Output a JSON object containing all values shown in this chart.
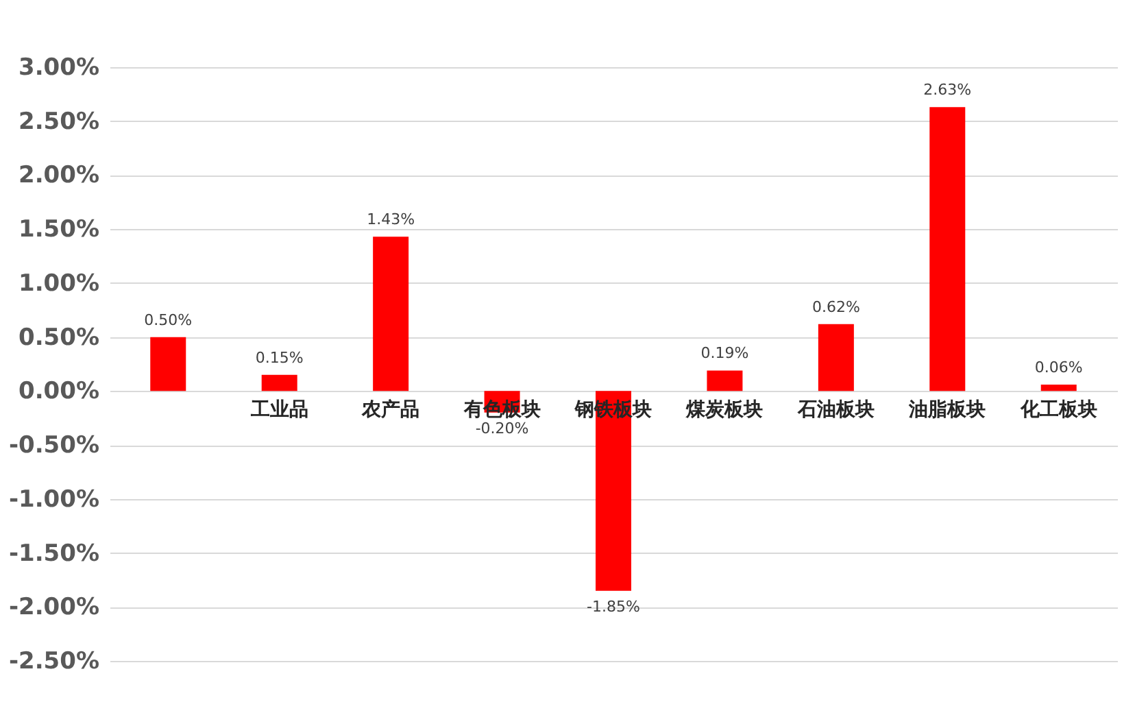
{
  "chart_data": {
    "type": "bar",
    "categories": [
      null,
      "工业品",
      "农产品",
      "有色板块",
      "钢铁板块",
      "煤炭板块",
      "石油板块",
      "油脂板块",
      "化工板块"
    ],
    "series": [
      {
        "color": "#ff0000",
        "values": [
          0.5,
          0.15,
          1.43,
          -0.2,
          -1.85,
          0.19,
          0.62,
          2.63,
          0.06
        ],
        "value_labels": [
          "0.50%",
          "0.15%",
          "1.43%",
          "-0.20%",
          "-1.85%",
          "0.19%",
          "0.62%",
          "2.63%",
          "0.06%"
        ]
      }
    ],
    "ylim": [
      -2.5,
      3.0
    ],
    "yticks": [
      {
        "value": -2.5,
        "label": "-2.50%"
      },
      {
        "value": -2.0,
        "label": "-2.00%"
      },
      {
        "value": -1.5,
        "label": "-1.50%"
      },
      {
        "value": -1.0,
        "label": "-1.00%"
      },
      {
        "value": -0.5,
        "label": "-0.50%"
      },
      {
        "value": 0,
        "label": "0.00%"
      },
      {
        "value": 0.5,
        "label": "0.50%"
      },
      {
        "value": 1.0,
        "label": "1.00%"
      },
      {
        "value": 1.5,
        "label": "1.50%"
      },
      {
        "value": 2.0,
        "label": "2.00%"
      },
      {
        "value": 2.5,
        "label": "2.50%"
      },
      {
        "value": 3.0,
        "label": "3.00%"
      }
    ],
    "grid": "y"
  }
}
